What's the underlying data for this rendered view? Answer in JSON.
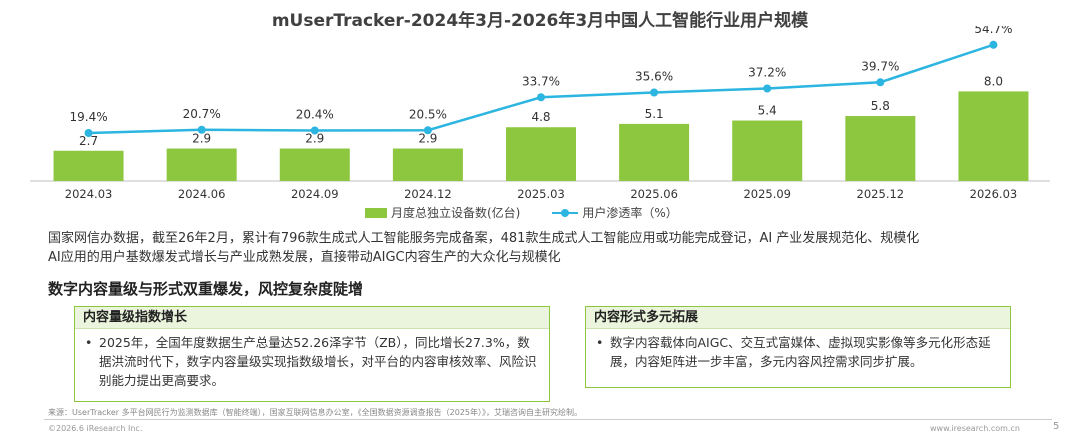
{
  "title": "mUserTracker-2024年3月-2026年3月中国人工智能行业用户规模",
  "chart_data": {
    "type": "bar",
    "title": "mUserTracker-2024年3月-2026年3月中国人工智能行业用户规模",
    "categories": [
      "2024.03",
      "2024.06",
      "2024.09",
      "2024.12",
      "2025.03",
      "2025.06",
      "2025.09",
      "2025.12",
      "2026.03"
    ],
    "series": [
      {
        "name": "月度总独立设备数(亿台)",
        "type": "bar",
        "values": [
          2.7,
          2.9,
          2.9,
          2.9,
          4.8,
          5.1,
          5.4,
          5.8,
          8.0
        ],
        "labels": [
          "2.7",
          "2.9",
          "2.9",
          "2.9",
          "4.8",
          "5.1",
          "5.4",
          "5.8",
          "8.0"
        ]
      },
      {
        "name": "用户渗透率（%）",
        "type": "line",
        "values": [
          19.4,
          20.7,
          20.4,
          20.5,
          33.7,
          35.6,
          37.2,
          39.7,
          54.7
        ],
        "labels": [
          "19.4%",
          "20.7%",
          "20.4%",
          "20.5%",
          "33.7%",
          "35.6%",
          "37.2%",
          "39.7%",
          "54.7%"
        ]
      }
    ],
    "bar_color": "#8dc63f",
    "line_color": "#2bb5e0"
  },
  "legend": {
    "bar_label": "月度总独立设备数(亿台)",
    "line_label": "用户渗透率（%）"
  },
  "description": {
    "line1": "国家网信办数据，截至26年2月，累计有796款生成式人工智能服务完成备案，481款生成式人工智能应用或功能完成登记，AI 产业发展规范化、规模化",
    "line2": "AI应用的用户基数爆发式增长与产业成熟发展，直接带动AIGC内容生产的大众化与规模化"
  },
  "section_title": "数字内容量级与形式双重爆发，风控复杂度陡增",
  "box_left": {
    "title": "内容量级指数增长",
    "text": "2025年，全国年度数据生产总量达52.26泽字节（ZB），同比增长27.3%，数据洪流时代下，数字内容量级实现指数级增长，对平台的内容审核效率、风险识别能力提出更高要求。"
  },
  "box_right": {
    "title": "内容形式多元拓展",
    "text": "数字内容载体向AIGC、交互式富媒体、虚拟现实影像等多元化形态延展，内容矩阵进一步丰富，多元内容风控需求同步扩展。"
  },
  "bullet": "•",
  "footer": {
    "source": "来源：UserTracker 多平台网民行为监测数据库（智能终端），国家互联网信息办公室，《全国数据资源调查报告（2025年）》，艾瑞咨询自主研究绘制。",
    "copyright": "©2026.6 iResearch Inc.",
    "url": "www.iresearch.com.cn",
    "page": "5"
  }
}
